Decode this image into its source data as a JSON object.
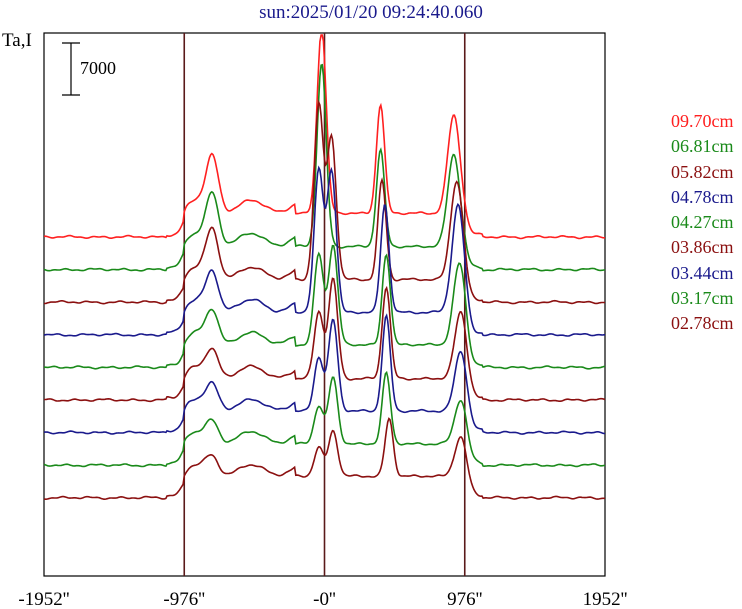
{
  "chart_data": {
    "type": "line",
    "title": "sun:2025/01/20 09:24:40.060",
    "ylabel": "Ta,I",
    "scale_bar": "7000",
    "x_ticks": [
      "-1952''",
      "-976''",
      "-0''",
      "976''",
      "1952''"
    ],
    "x_tick_values": [
      -1952,
      -976,
      0,
      976,
      1952
    ],
    "xlim": [
      -1952,
      1952
    ],
    "grid": false,
    "legend_position": "right",
    "vertical_lines_at": [
      -976,
      0,
      976
    ],
    "series": [
      {
        "name": "09.70cm",
        "color": "#ff2020",
        "amplitude": 1.0,
        "offset": 0,
        "peaks": [
          {
            "x": -20,
            "h": 22400
          },
          {
            "x": 390,
            "h": 13200
          },
          {
            "x": 900,
            "h": 11900
          },
          {
            "x": -780,
            "h": 6300
          }
        ]
      },
      {
        "name": "06.81cm",
        "color": "#1a8a1a",
        "amplitude": 0.98,
        "offset": 1,
        "peaks": [
          {
            "x": -20,
            "h": 22000
          },
          {
            "x": 390,
            "h": 11600
          },
          {
            "x": 900,
            "h": 11100
          },
          {
            "x": -780,
            "h": 5800
          }
        ]
      },
      {
        "name": "05.82cm",
        "color": "#8b1010",
        "amplitude": 0.95,
        "offset": 2,
        "peaks": [
          {
            "x": -40,
            "h": 21000
          },
          {
            "x": 50,
            "h": 17000
          },
          {
            "x": 400,
            "h": 12000
          },
          {
            "x": 920,
            "h": 12000
          },
          {
            "x": -780,
            "h": 5500
          }
        ]
      },
      {
        "name": "04.78cm",
        "color": "#1a1a8c",
        "amplitude": 0.95,
        "offset": 3,
        "peaks": [
          {
            "x": -40,
            "h": 17000
          },
          {
            "x": 50,
            "h": 17000
          },
          {
            "x": 420,
            "h": 13000
          },
          {
            "x": 930,
            "h": 13000
          },
          {
            "x": -780,
            "h": 4400
          }
        ]
      },
      {
        "name": "04.27cm",
        "color": "#1a8a1a",
        "amplitude": 0.95,
        "offset": 4,
        "peaks": [
          {
            "x": -40,
            "h": 11000
          },
          {
            "x": 60,
            "h": 12000
          },
          {
            "x": 430,
            "h": 11000
          },
          {
            "x": 940,
            "h": 10000
          },
          {
            "x": -780,
            "h": 3600
          }
        ]
      },
      {
        "name": "03.86cm",
        "color": "#8b1010",
        "amplitude": 0.9,
        "offset": 5,
        "peaks": [
          {
            "x": -40,
            "h": 8000
          },
          {
            "x": 60,
            "h": 12000
          },
          {
            "x": 430,
            "h": 11000
          },
          {
            "x": 950,
            "h": 8200
          },
          {
            "x": -780,
            "h": 3000
          }
        ]
      },
      {
        "name": "03.44cm",
        "color": "#1a1a8c",
        "amplitude": 0.9,
        "offset": 6,
        "peaks": [
          {
            "x": -40,
            "h": 6500
          },
          {
            "x": 60,
            "h": 11000
          },
          {
            "x": 430,
            "h": 11500
          },
          {
            "x": 950,
            "h": 7500
          },
          {
            "x": -780,
            "h": 2700
          }
        ]
      },
      {
        "name": "03.17cm",
        "color": "#1a8a1a",
        "amplitude": 0.9,
        "offset": 7,
        "peaks": [
          {
            "x": -40,
            "h": 4500
          },
          {
            "x": 60,
            "h": 8000
          },
          {
            "x": 430,
            "h": 8500
          },
          {
            "x": 950,
            "h": 5500
          },
          {
            "x": -780,
            "h": 2200
          }
        ]
      },
      {
        "name": "02.78cm",
        "color": "#8b1010",
        "amplitude": 0.9,
        "offset": 8,
        "peaks": [
          {
            "x": -40,
            "h": 3500
          },
          {
            "x": 60,
            "h": 5500
          },
          {
            "x": 450,
            "h": 7000
          },
          {
            "x": 950,
            "h": 5000
          },
          {
            "x": -780,
            "h": 1800
          }
        ]
      }
    ]
  }
}
